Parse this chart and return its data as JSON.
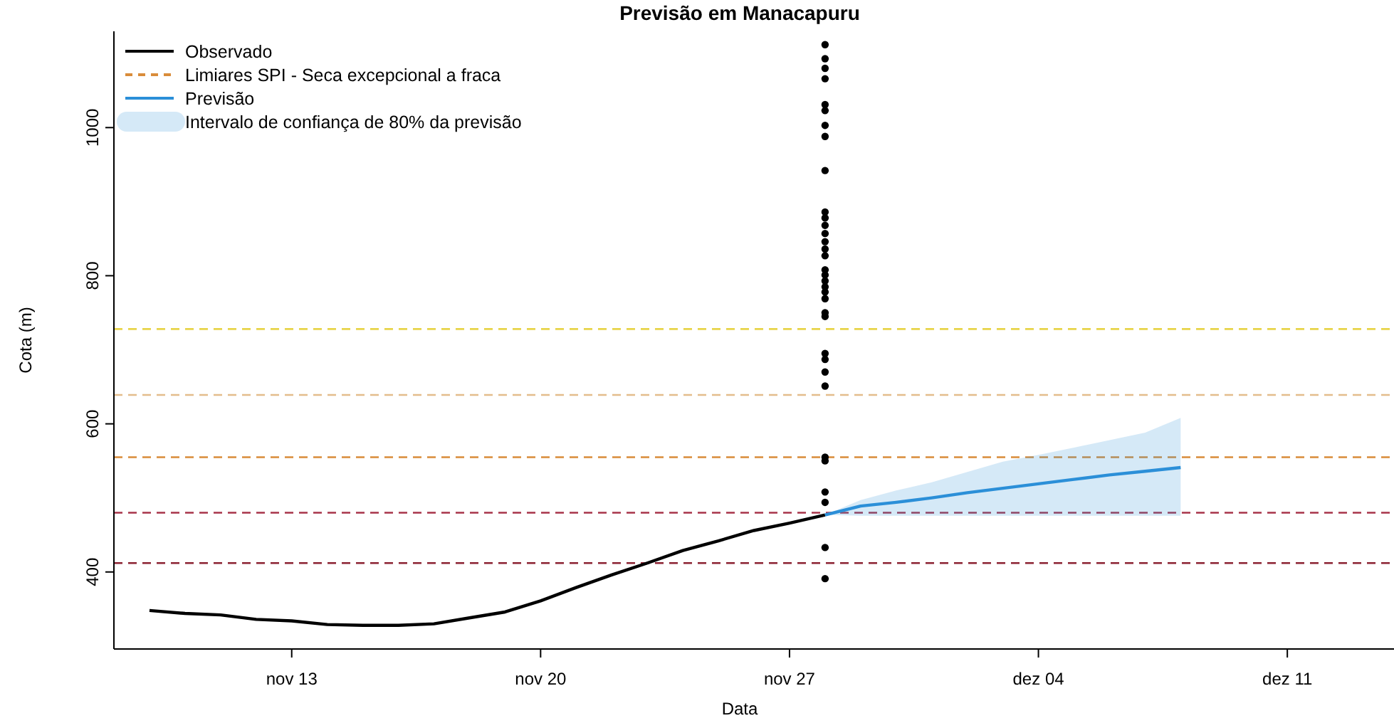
{
  "chart_data": {
    "type": "line",
    "title": "Previsão em Manacapuru",
    "xlabel": "Data",
    "ylabel": "Cota (m)",
    "xlim": [
      "--11-08",
      "--12-14"
    ],
    "xticks": [
      {
        "value": "--11-13",
        "label": "nov 13"
      },
      {
        "value": "--11-20",
        "label": "nov 20"
      },
      {
        "value": "--11-27",
        "label": "nov 27"
      },
      {
        "value": "--12-04",
        "label": "dez 04"
      },
      {
        "value": "--12-11",
        "label": "dez 11"
      }
    ],
    "ylim": [
      296,
      1130
    ],
    "yticks": [
      400,
      600,
      800,
      1000
    ],
    "grid": false,
    "legend": "top left",
    "annotations": [
      "Limiares SPI - Seca excepcional a fraca",
      "Intervalo de confiança de 80% da previsão"
    ],
    "ref_lines": [
      {
        "axis": "y",
        "value": 728,
        "label": null,
        "color": "#e8d44a",
        "line_style": "dashed"
      },
      {
        "axis": "y",
        "value": 639,
        "label": null,
        "color": "#e3bd8c",
        "line_style": "dashed"
      },
      {
        "axis": "y",
        "value": 555,
        "label": null,
        "color": "#d98c3a",
        "line_style": "dashed"
      },
      {
        "axis": "y",
        "value": 480,
        "label": null,
        "color": "#a8344a",
        "line_style": "dashed"
      },
      {
        "axis": "y",
        "value": 412,
        "label": null,
        "color": "#8b2232",
        "line_style": "dashed"
      }
    ],
    "series": [
      {
        "name": "Observado",
        "color": "#000000",
        "marker": "none",
        "line_style": "solid",
        "x": [
          "--11-09",
          "--11-10",
          "--11-11",
          "--11-12",
          "--11-13",
          "--11-14",
          "--11-15",
          "--11-16",
          "--11-17",
          "--11-18",
          "--11-19",
          "--11-20",
          "--11-21",
          "--11-22",
          "--11-23",
          "--11-24",
          "--11-25",
          "--11-26",
          "--11-27",
          "--11-28"
        ],
        "values": [
          348,
          344,
          342,
          336,
          334,
          329,
          328,
          328,
          330,
          338,
          346,
          361,
          379,
          396,
          412,
          429,
          442,
          456,
          466,
          477
        ]
      },
      {
        "name": "Previsão",
        "type": "line",
        "color": "#2b8fd8",
        "marker": "none",
        "line_style": "solid",
        "x": [
          "--11-28",
          "--11-29",
          "--11-30",
          "--12-01",
          "--12-02",
          "--12-03",
          "--12-04",
          "--12-05",
          "--12-06",
          "--12-07",
          "--12-08"
        ],
        "values": [
          477,
          489,
          494,
          500,
          507,
          513,
          519,
          525,
          531,
          536,
          541
        ],
        "lower": [
          477,
          476,
          476,
          476,
          476,
          476,
          476,
          476,
          476,
          476,
          476
        ],
        "upper": [
          477,
          497,
          510,
          521,
          535,
          549,
          558,
          568,
          578,
          588,
          608
        ]
      },
      {
        "type": "scatter",
        "color": "#000000",
        "marker": "circle",
        "x": [
          "--11-28",
          "--11-28",
          "--11-28",
          "--11-28",
          "--11-28",
          "--11-28",
          "--11-28",
          "--11-28",
          "--11-28",
          "--11-28",
          "--11-28",
          "--11-28",
          "--11-28",
          "--11-28",
          "--11-28",
          "--11-28",
          "--11-28",
          "--11-28",
          "--11-28",
          "--11-28",
          "--11-28",
          "--11-28",
          "--11-28",
          "--11-28",
          "--11-28",
          "--11-28",
          "--11-28",
          "--11-28",
          "--11-28",
          "--11-28",
          "--11-28",
          "--11-28",
          "--11-28",
          "--11-28"
        ],
        "values": [
          1112,
          1093,
          1080,
          1066,
          1031,
          1023,
          1003,
          988,
          942,
          886,
          878,
          868,
          857,
          846,
          836,
          827,
          808,
          801,
          793,
          785,
          778,
          769,
          750,
          745,
          695,
          687,
          670,
          651,
          555,
          550,
          508,
          494,
          433,
          391
        ]
      }
    ]
  }
}
